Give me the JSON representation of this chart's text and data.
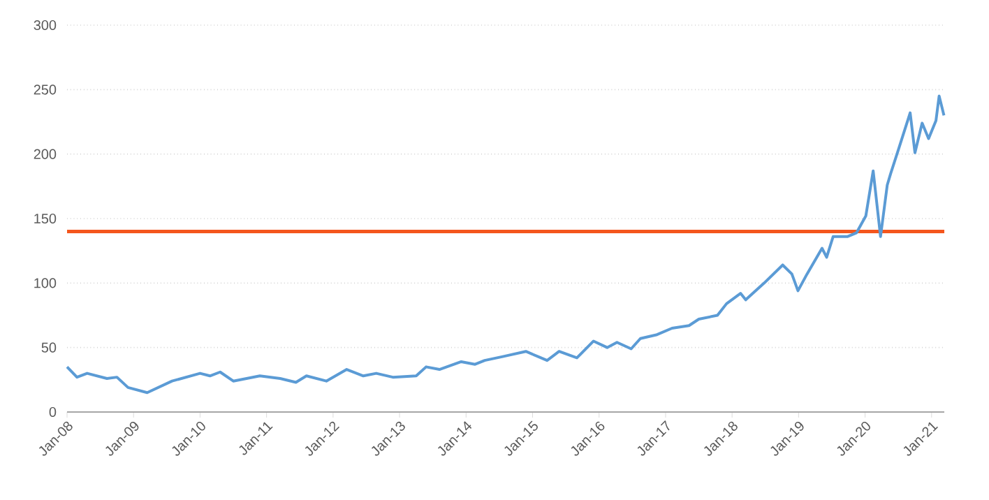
{
  "chart_data": {
    "type": "line",
    "x": [
      "2008-01-01",
      "2008-02-25",
      "2008-04-20",
      "2008-08-07",
      "2008-10-01",
      "2008-12-01",
      "2009-03-15",
      "2009-07-30",
      "2010-01-01",
      "2010-02-25",
      "2010-04-20",
      "2010-07-01",
      "2010-11-25",
      "2011-03-15",
      "2011-06-10",
      "2011-08-07",
      "2011-11-25",
      "2012-03-15",
      "2012-06-15",
      "2012-08-25",
      "2012-11-25",
      "2013-04-01",
      "2013-05-25",
      "2013-08-07",
      "2013-12-05",
      "2014-02-20",
      "2014-04-12",
      "2014-07-20",
      "2014-11-25",
      "2015-03-20",
      "2015-05-25",
      "2015-09-01",
      "2015-12-01",
      "2016-02-15",
      "2016-04-08",
      "2016-06-25",
      "2016-08-15",
      "2016-11-15",
      "2017-02-06",
      "2017-05-08",
      "2017-07-01",
      "2017-10-12",
      "2017-12-01",
      "2018-02-17",
      "2018-03-15",
      "2018-06-25",
      "2018-10-05",
      "2018-11-25",
      "2018-12-28",
      "2019-02-17",
      "2019-05-08",
      "2019-06-03",
      "2019-07-08",
      "2019-09-25",
      "2019-11-15",
      "2020-01-05",
      "2020-02-15",
      "2020-03-25",
      "2020-05-01",
      "2020-05-20",
      "2020-07-05",
      "2020-09-05",
      "2020-10-01",
      "2020-11-10",
      "2020-12-15",
      "2021-01-25",
      "2021-02-12",
      "2021-03-08"
    ],
    "series": [
      {
        "color": "#5b9bd5",
        "values": [
          35,
          27,
          30,
          26,
          27,
          19,
          15,
          24,
          30,
          28,
          31,
          24,
          28,
          26,
          23,
          28,
          24,
          33,
          28,
          30,
          27,
          28,
          35,
          33,
          39,
          37,
          40,
          43,
          47,
          40,
          47,
          42,
          55,
          50,
          54,
          49,
          57,
          60,
          65,
          67,
          72,
          75,
          84,
          92,
          87,
          100,
          114,
          107,
          94,
          107,
          127,
          120,
          136,
          136,
          139,
          152,
          187,
          136,
          176,
          185,
          205,
          232,
          201,
          224,
          212,
          226,
          245,
          230
        ]
      }
    ],
    "xlim": [
      "2008-01-01",
      "2021-03-10"
    ],
    "xticks": [
      {
        "value": "2008-01-01",
        "label": "Jan-08"
      },
      {
        "value": "2009-01-01",
        "label": "Jan-09"
      },
      {
        "value": "2010-01-01",
        "label": "Jan-10"
      },
      {
        "value": "2011-01-01",
        "label": "Jan-11"
      },
      {
        "value": "2012-01-01",
        "label": "Jan-12"
      },
      {
        "value": "2013-01-01",
        "label": "Jan-13"
      },
      {
        "value": "2014-01-01",
        "label": "Jan-14"
      },
      {
        "value": "2015-01-01",
        "label": "Jan-15"
      },
      {
        "value": "2016-01-01",
        "label": "Jan-16"
      },
      {
        "value": "2017-01-01",
        "label": "Jan-17"
      },
      {
        "value": "2018-01-01",
        "label": "Jan-18"
      },
      {
        "value": "2019-01-01",
        "label": "Jan-19"
      },
      {
        "value": "2020-01-01",
        "label": "Jan-20"
      },
      {
        "value": "2021-01-01",
        "label": "Jan-21"
      }
    ],
    "ylim": [
      0,
      300
    ],
    "yticks": [
      0,
      50,
      100,
      150,
      200,
      250,
      300
    ],
    "grid": "y",
    "legend": false,
    "marker": "none",
    "line_style": "solid",
    "ref_lines": [
      {
        "axis": "y",
        "value": 140,
        "color": "#f4561d"
      }
    ]
  }
}
